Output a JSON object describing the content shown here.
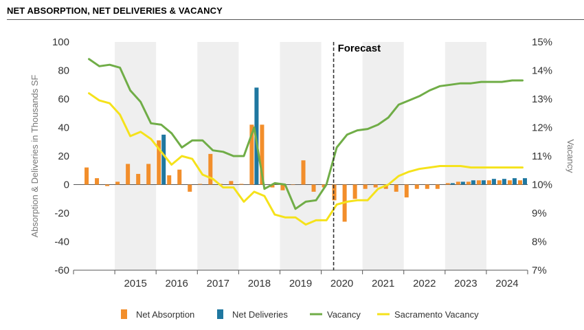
{
  "title": "NET ABSORPTION, NET DELIVERIES & VACANCY",
  "colors": {
    "net_absorption": "#f28e2b",
    "net_deliveries": "#1f77a0",
    "vacancy": "#70ad47",
    "sacramento_vacancy": "#f5e21b",
    "band": "#efefef",
    "forecast_line": "#333333"
  },
  "chart_data": {
    "type": "bar+line",
    "title": "NET ABSORPTION, NET DELIVERIES & VACANCY",
    "ylabel_left": "Absorption & Deliveries in Thousands SF",
    "ylabel_right": "Vacancy",
    "ylim_left": [
      -60,
      100
    ],
    "yticks_left": [
      "-60",
      "-40",
      "-20",
      "0",
      "20",
      "40",
      "60",
      "80",
      "100"
    ],
    "ylim_right": [
      7,
      15
    ],
    "yticks_right": [
      "7%",
      "8%",
      "9%",
      "10%",
      "11%",
      "12%",
      "13%",
      "14%",
      "15%"
    ],
    "year_labels": [
      "2015",
      "2016",
      "2017",
      "2018",
      "2019",
      "2020",
      "2021",
      "2022",
      "2023",
      "2024"
    ],
    "x_start_year": 2014,
    "annotation": {
      "text": "Forecast",
      "year": 2020.3
    },
    "grid": false,
    "legend_position": "bottom",
    "series": [
      {
        "name": "Net Absorption",
        "type": "bar",
        "quarters": [
          "2014Q2",
          "2014Q3",
          "2014Q4",
          "2015Q1",
          "2015Q2",
          "2015Q3",
          "2015Q4",
          "2016Q1",
          "2016Q2",
          "2016Q3",
          "2016Q4",
          "2017Q1",
          "2017Q2",
          "2017Q3",
          "2017Q4",
          "2018Q1",
          "2018Q2",
          "2018Q3",
          "2018Q4",
          "2019Q1",
          "2019Q2",
          "2019Q3",
          "2019Q4",
          "2020Q1",
          "2020Q2",
          "2020Q3",
          "2020Q4",
          "2021Q1",
          "2021Q2",
          "2021Q3",
          "2021Q4",
          "2022Q1",
          "2022Q2",
          "2022Q3",
          "2022Q4",
          "2023Q1",
          "2023Q2",
          "2023Q3",
          "2023Q4",
          "2024Q1",
          "2024Q2",
          "2024Q3",
          "2024Q4"
        ],
        "values": [
          12,
          4.5,
          -1,
          2,
          14.5,
          7.5,
          14.5,
          31,
          6.5,
          10.5,
          -5,
          0.5,
          21.5,
          0.5,
          2.5,
          0.5,
          42,
          42,
          -2,
          -4,
          0,
          17,
          -5,
          -2,
          -11,
          -26,
          -10,
          -3,
          -2,
          -3,
          -5,
          -9,
          -3,
          -3,
          -3,
          1,
          2,
          2,
          3,
          3,
          3,
          3,
          3
        ]
      },
      {
        "name": "Net Deliveries",
        "type": "bar",
        "quarters": [
          "2016Q1",
          "2018Q2",
          "2023Q1",
          "2023Q2",
          "2023Q3",
          "2023Q4",
          "2024Q1",
          "2024Q2",
          "2024Q3",
          "2024Q4"
        ],
        "values": [
          35,
          68,
          1,
          2,
          3,
          3,
          4,
          4,
          4.5,
          4.5
        ]
      },
      {
        "name": "Vacancy",
        "type": "line",
        "quarters": [
          "2014Q2",
          "2014Q3",
          "2014Q4",
          "2015Q1",
          "2015Q2",
          "2015Q3",
          "2015Q4",
          "2016Q1",
          "2016Q2",
          "2016Q3",
          "2016Q4",
          "2017Q1",
          "2017Q2",
          "2017Q3",
          "2017Q4",
          "2018Q1",
          "2018Q2",
          "2018Q3",
          "2018Q4",
          "2019Q1",
          "2019Q2",
          "2019Q3",
          "2019Q4",
          "2020Q1",
          "2020Q2",
          "2020Q3",
          "2020Q4",
          "2021Q1",
          "2021Q2",
          "2021Q3",
          "2021Q4",
          "2022Q1",
          "2022Q2",
          "2022Q3",
          "2022Q4",
          "2023Q1",
          "2023Q2",
          "2023Q3",
          "2023Q4",
          "2024Q1",
          "2024Q2",
          "2024Q3",
          "2024Q4"
        ],
        "values": [
          14.4,
          14.15,
          14.2,
          14.1,
          13.3,
          12.9,
          12.15,
          12.1,
          11.8,
          11.3,
          11.55,
          11.55,
          11.2,
          11.15,
          11.0,
          11.0,
          12.0,
          9.85,
          10.05,
          10.0,
          9.15,
          9.4,
          9.45,
          10.0,
          11.3,
          11.75,
          11.9,
          11.95,
          12.1,
          12.35,
          12.8,
          12.95,
          13.1,
          13.3,
          13.45,
          13.5,
          13.55,
          13.55,
          13.6,
          13.6,
          13.6,
          13.65,
          13.65
        ]
      },
      {
        "name": "Sacramento Vacancy",
        "type": "line",
        "quarters": [
          "2014Q2",
          "2014Q3",
          "2014Q4",
          "2015Q1",
          "2015Q2",
          "2015Q3",
          "2015Q4",
          "2016Q1",
          "2016Q2",
          "2016Q3",
          "2016Q4",
          "2017Q1",
          "2017Q2",
          "2017Q3",
          "2017Q4",
          "2018Q1",
          "2018Q2",
          "2018Q3",
          "2018Q4",
          "2019Q1",
          "2019Q2",
          "2019Q3",
          "2019Q4",
          "2020Q1",
          "2020Q2",
          "2020Q3",
          "2020Q4",
          "2021Q1",
          "2021Q2",
          "2021Q3",
          "2021Q4",
          "2022Q1",
          "2022Q2",
          "2022Q3",
          "2022Q4",
          "2023Q1",
          "2023Q2",
          "2023Q3",
          "2023Q4",
          "2024Q1",
          "2024Q2",
          "2024Q3",
          "2024Q4"
        ],
        "values": [
          13.2,
          12.95,
          12.85,
          12.45,
          11.7,
          11.85,
          11.6,
          11.15,
          10.7,
          11.0,
          10.9,
          10.35,
          10.2,
          9.9,
          9.9,
          9.4,
          9.75,
          9.6,
          8.95,
          8.85,
          8.85,
          8.6,
          8.75,
          8.75,
          9.3,
          9.4,
          9.45,
          9.45,
          9.85,
          10.0,
          10.3,
          10.45,
          10.55,
          10.6,
          10.65,
          10.65,
          10.65,
          10.6,
          10.6,
          10.6,
          10.6,
          10.6,
          10.6
        ]
      }
    ]
  }
}
